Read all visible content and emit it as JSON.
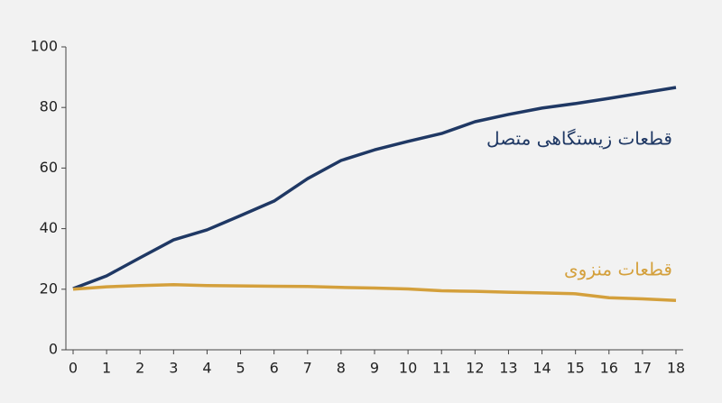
{
  "chart_data": {
    "type": "line",
    "x": [
      0,
      1,
      2,
      3,
      4,
      5,
      6,
      7,
      8,
      9,
      10,
      11,
      12,
      13,
      14,
      15,
      16,
      17,
      18
    ],
    "series": [
      {
        "name": "قطعات زیستگاهی متصل",
        "color": "#1f3864",
        "values": [
          20.2,
          24.4,
          30.4,
          36.3,
          39.6,
          44.3,
          49.1,
          56.5,
          62.5,
          66,
          68.8,
          71.4,
          75.3,
          77.7,
          79.8,
          81.3,
          83,
          84.8,
          86.6
        ]
      },
      {
        "name": "قطعات منزوی",
        "color": "#d4a03c",
        "values": [
          20,
          20.8,
          21.2,
          21.5,
          21.2,
          21.1,
          21,
          20.9,
          20.6,
          20.4,
          20.1,
          19.5,
          19.3,
          19,
          18.8,
          18.5,
          17.2,
          16.8,
          16.3
        ]
      }
    ],
    "xlim": [
      0,
      18
    ],
    "xticks": [
      0,
      1,
      2,
      3,
      4,
      5,
      6,
      7,
      8,
      9,
      10,
      11,
      12,
      13,
      14,
      15,
      16,
      17,
      18
    ],
    "ylim": [
      0,
      100
    ],
    "yticks": [
      0,
      20,
      40,
      60,
      80,
      100
    ]
  }
}
